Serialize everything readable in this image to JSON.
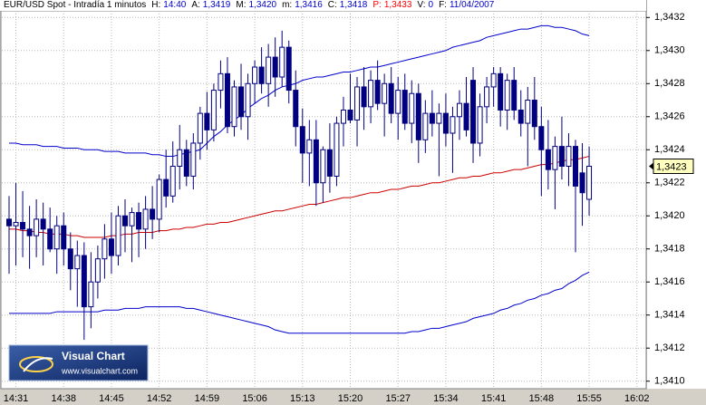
{
  "chart_data": {
    "type": "candlestick",
    "header": {
      "title": "EUR/USD Spot - Intradía 1 minutos",
      "items": [
        {
          "label": "H:",
          "value": "14:40",
          "color": "#0000cc"
        },
        {
          "label": "A:",
          "value": "1,3419",
          "color": "#0000cc"
        },
        {
          "label": "M:",
          "value": "1,3420",
          "color": "#0000cc"
        },
        {
          "label": "m:",
          "value": "1,3416",
          "color": "#0000cc"
        },
        {
          "label": "C:",
          "value": "1,3418",
          "color": "#0000cc"
        },
        {
          "label": "P:",
          "value": "1,3433",
          "color": "#ff0000",
          "label_color": "#ff0000"
        },
        {
          "label": "V:",
          "value": "0",
          "color": "#0000cc"
        },
        {
          "label": "F:",
          "value": "11/04/2007",
          "color": "#0000cc"
        }
      ]
    },
    "logo": {
      "title": "Visual Chart",
      "url": "www.visualchart.com"
    },
    "categories": [
      null,
      "14:31",
      null,
      null,
      null,
      null,
      null,
      null,
      "14:38",
      null,
      null,
      null,
      null,
      null,
      null,
      "14:45",
      null,
      null,
      null,
      null,
      null,
      null,
      "14:52",
      null,
      null,
      null,
      null,
      null,
      null,
      "14:59",
      null,
      null,
      null,
      null,
      null,
      null,
      "15:06",
      null,
      null,
      null,
      null,
      null,
      null,
      "15:13",
      null,
      null,
      null,
      null,
      null,
      null,
      "15:20",
      null,
      null,
      null,
      null,
      null,
      null,
      "15:27",
      null,
      null,
      null,
      null,
      null,
      null,
      "15:34",
      null,
      null,
      null,
      null,
      null,
      null,
      "15:41",
      null,
      null,
      null,
      null,
      null,
      null,
      "15:48",
      null,
      null,
      null,
      null,
      null,
      null,
      "15:55",
      null,
      null,
      null,
      null,
      null,
      null,
      "16:02"
    ],
    "candle_color": "#000080",
    "open": [
      1.34198,
      1.34194,
      1.34196,
      1.34192,
      1.34188,
      1.34198,
      1.34192,
      1.3418,
      1.34194,
      1.3418,
      1.34168,
      1.34176,
      1.34145,
      1.3416,
      1.34174,
      1.34186,
      1.34176,
      1.342,
      1.34194,
      1.34202,
      1.34192,
      1.34204,
      1.34198,
      1.34222,
      1.34212,
      1.3423,
      1.3424,
      1.34224,
      1.34244,
      1.34262,
      1.34252,
      1.34276,
      1.34286,
      1.34254,
      1.34278,
      1.3426,
      1.3428,
      1.3429,
      1.3428,
      1.34296,
      1.34284,
      1.34302,
      1.34276,
      1.34254,
      1.34238,
      1.34246,
      1.3422,
      1.3424,
      1.34224,
      1.34256,
      1.34264,
      1.34258,
      1.34278,
      1.34266,
      1.34282,
      1.34268,
      1.3428,
      1.34262,
      1.34276,
      1.34256,
      1.34274,
      1.34246,
      1.34262,
      1.34256,
      1.34262,
      1.3425,
      1.3426,
      1.34268,
      1.34282,
      1.34244,
      1.34266,
      1.34278,
      1.34286,
      1.34264,
      1.34282,
      1.34264,
      1.34256,
      1.3427,
      1.34254,
      1.3424,
      1.34228,
      1.34242,
      1.3423,
      1.34242,
      1.34226,
      1.3421,
      null,
      null,
      null,
      null,
      null,
      null,
      null
    ],
    "high": [
      1.34212,
      1.3422,
      1.34215,
      1.34206,
      1.3421,
      1.34208,
      1.34205,
      1.342,
      1.34202,
      1.3419,
      1.34185,
      1.34184,
      1.34178,
      1.34182,
      1.34195,
      1.34202,
      1.34206,
      1.3421,
      1.34205,
      1.34208,
      1.34212,
      1.34218,
      1.34225,
      1.3424,
      1.34245,
      1.34255,
      1.34246,
      1.3425,
      1.34266,
      1.34275,
      1.3428,
      1.34294,
      1.34296,
      1.34282,
      1.34292,
      1.34286,
      1.34294,
      1.34302,
      1.34304,
      1.34308,
      1.34312,
      1.34306,
      1.34288,
      1.34265,
      1.34258,
      1.34258,
      1.34242,
      1.34256,
      1.3426,
      1.34272,
      1.34286,
      1.34284,
      1.3429,
      1.34288,
      1.34294,
      1.34286,
      1.3429,
      1.34284,
      1.34286,
      1.34282,
      1.3428,
      1.3427,
      1.34276,
      1.34268,
      1.34274,
      1.34266,
      1.34276,
      1.34284,
      1.3429,
      1.34274,
      1.34284,
      1.3429,
      1.3429,
      1.34286,
      1.3429,
      1.34276,
      1.34278,
      1.34284,
      1.34266,
      1.34258,
      1.34248,
      1.3426,
      1.3425,
      1.34246,
      1.34244,
      1.34242,
      null,
      null,
      null,
      null,
      null,
      null,
      null
    ],
    "low": [
      1.34165,
      1.3417,
      1.34175,
      1.34168,
      1.34175,
      1.3417,
      1.34178,
      1.34165,
      1.3417,
      1.34155,
      1.34145,
      1.34125,
      1.34132,
      1.3415,
      1.34162,
      1.34165,
      1.3417,
      1.34178,
      1.34172,
      1.34175,
      1.3418,
      1.34186,
      1.3419,
      1.34205,
      1.34208,
      1.34216,
      1.34218,
      1.34216,
      1.34234,
      1.3424,
      1.34245,
      1.34265,
      1.3425,
      1.34248,
      1.34252,
      1.34246,
      1.34268,
      1.34274,
      1.34266,
      1.34272,
      1.34278,
      1.34268,
      1.34242,
      1.3422,
      1.34218,
      1.34206,
      1.34208,
      1.34214,
      1.34218,
      1.34242,
      1.34256,
      1.34242,
      1.34252,
      1.34256,
      1.34264,
      1.34248,
      1.34256,
      1.34246,
      1.34252,
      1.34244,
      1.34232,
      1.34238,
      1.34248,
      1.34224,
      1.34242,
      1.34226,
      1.34246,
      1.34248,
      1.34232,
      1.34236,
      1.34256,
      1.34266,
      1.34254,
      1.34252,
      1.34258,
      1.34248,
      1.3423,
      1.34246,
      1.34212,
      1.34216,
      1.34204,
      1.34222,
      1.34218,
      1.34178,
      1.34194,
      1.342,
      null,
      null,
      null,
      null,
      null,
      null,
      null
    ],
    "close": [
      1.34194,
      1.34196,
      1.34192,
      1.34188,
      1.34198,
      1.34192,
      1.3418,
      1.34194,
      1.3418,
      1.34168,
      1.34176,
      1.34145,
      1.3416,
      1.34174,
      1.34186,
      1.34176,
      1.342,
      1.34194,
      1.34202,
      1.34192,
      1.34204,
      1.34198,
      1.34222,
      1.34212,
      1.3423,
      1.3424,
      1.34224,
      1.34244,
      1.34262,
      1.34252,
      1.34276,
      1.34286,
      1.34254,
      1.34278,
      1.3426,
      1.3428,
      1.3429,
      1.3428,
      1.34296,
      1.34284,
      1.34302,
      1.34276,
      1.34254,
      1.34238,
      1.34246,
      1.3422,
      1.3424,
      1.34224,
      1.34256,
      1.34264,
      1.34258,
      1.34278,
      1.34266,
      1.34282,
      1.34268,
      1.3428,
      1.34262,
      1.34276,
      1.34256,
      1.34274,
      1.34246,
      1.34262,
      1.34256,
      1.34262,
      1.3425,
      1.3426,
      1.34268,
      1.34252,
      1.34244,
      1.34266,
      1.34278,
      1.34286,
      1.34264,
      1.34282,
      1.34264,
      1.34256,
      1.3427,
      1.34254,
      1.3424,
      1.34228,
      1.34242,
      1.3423,
      1.34242,
      1.34218,
      1.34214,
      1.3423,
      null,
      null,
      null,
      null,
      null,
      null,
      null
    ],
    "lines": [
      {
        "color": "#0000cc",
        "values": [
          1.34244,
          1.34244,
          1.34243,
          1.34243,
          1.34243,
          1.34242,
          1.34242,
          1.34242,
          1.34241,
          1.34241,
          1.34241,
          1.3424,
          1.3424,
          1.3424,
          1.34239,
          1.34239,
          1.34239,
          1.34238,
          1.34238,
          1.34238,
          1.34238,
          1.34237,
          1.34237,
          1.34236,
          1.34236,
          1.34237,
          1.34238,
          1.34239,
          1.3424,
          1.34244,
          1.34248,
          1.34251,
          1.34255,
          1.34258,
          1.34261,
          1.34265,
          1.34268,
          1.34271,
          1.34273,
          1.34276,
          1.34278,
          1.34279,
          1.3428,
          1.34282,
          1.34283,
          1.34284,
          1.34284,
          1.34285,
          1.34286,
          1.34287,
          1.34287,
          1.34288,
          1.34289,
          1.3429,
          1.3429,
          1.34291,
          1.34292,
          1.34293,
          1.34294,
          1.34295,
          1.34296,
          1.34297,
          1.34298,
          1.34299,
          1.343,
          1.34302,
          1.34303,
          1.34304,
          1.34305,
          1.34306,
          1.34308,
          1.34309,
          1.3431,
          1.34311,
          1.34312,
          1.34313,
          1.34313,
          1.34314,
          1.34315,
          1.34315,
          1.34314,
          1.34314,
          1.34313,
          1.34312,
          1.3431,
          1.34309,
          null,
          null,
          null,
          null,
          null,
          null,
          null
        ]
      },
      {
        "color": "#cc0000",
        "values": [
          1.34192,
          1.34192,
          1.34191,
          1.34191,
          1.3419,
          1.3419,
          1.34189,
          1.34189,
          1.34189,
          1.34188,
          1.34188,
          1.34187,
          1.34187,
          1.34187,
          1.34187,
          1.34188,
          1.34188,
          1.34189,
          1.34189,
          1.3419,
          1.3419,
          1.3419,
          1.34191,
          1.34191,
          1.34192,
          1.34192,
          1.34193,
          1.34193,
          1.34194,
          1.34195,
          1.34195,
          1.34196,
          1.34196,
          1.34197,
          1.34198,
          1.34199,
          1.342,
          1.34201,
          1.34202,
          1.34203,
          1.34203,
          1.34204,
          1.34205,
          1.34206,
          1.34207,
          1.34207,
          1.34208,
          1.34209,
          1.3421,
          1.34211,
          1.34211,
          1.34212,
          1.34213,
          1.34214,
          1.34214,
          1.34215,
          1.34216,
          1.34216,
          1.34217,
          1.34218,
          1.34218,
          1.34219,
          1.3422,
          1.3422,
          1.34221,
          1.34222,
          1.34223,
          1.34223,
          1.34224,
          1.34224,
          1.34225,
          1.34226,
          1.34226,
          1.34227,
          1.34228,
          1.34228,
          1.34229,
          1.3423,
          1.34231,
          1.34231,
          1.34232,
          1.34233,
          1.34234,
          1.34234,
          1.34235,
          1.34236,
          null,
          null,
          null,
          null,
          null,
          null,
          null
        ]
      },
      {
        "color": "#0000cc",
        "values": [
          1.34141,
          1.34141,
          1.34141,
          1.34141,
          1.34141,
          1.34141,
          1.34141,
          1.34142,
          1.34142,
          1.34142,
          1.34142,
          1.34142,
          1.34142,
          1.34142,
          1.34143,
          1.34143,
          1.34143,
          1.34144,
          1.34144,
          1.34144,
          1.34145,
          1.34145,
          1.34145,
          1.34145,
          1.34145,
          1.34145,
          1.34144,
          1.34144,
          1.34143,
          1.34142,
          1.34141,
          1.3414,
          1.34139,
          1.34138,
          1.34137,
          1.34136,
          1.34135,
          1.34134,
          1.34133,
          1.34131,
          1.3413,
          1.34129,
          1.34129,
          1.34129,
          1.34129,
          1.34129,
          1.34129,
          1.34129,
          1.34129,
          1.34129,
          1.34129,
          1.34129,
          1.34129,
          1.34129,
          1.34129,
          1.34129,
          1.34129,
          1.34129,
          1.34129,
          1.3413,
          1.3413,
          1.34131,
          1.34132,
          1.34132,
          1.34133,
          1.34134,
          1.34135,
          1.34136,
          1.34138,
          1.34139,
          1.3414,
          1.34141,
          1.34143,
          1.34144,
          1.34146,
          1.34147,
          1.34149,
          1.3415,
          1.34152,
          1.34153,
          1.34155,
          1.34156,
          1.34159,
          1.34161,
          1.34164,
          1.34166,
          null,
          null,
          null,
          null,
          null,
          null,
          null
        ]
      }
    ],
    "current_price": {
      "value": 1.3423,
      "label": "1,3423"
    },
    "ylim": [
      1.34096,
      1.34324
    ],
    "yticks": [
      {
        "value": 1.341,
        "label": "1,3410"
      },
      {
        "value": 1.3412,
        "label": "1,3412"
      },
      {
        "value": 1.3414,
        "label": "1,3414"
      },
      {
        "value": 1.3416,
        "label": "1,3416"
      },
      {
        "value": 1.3418,
        "label": "1,3418"
      },
      {
        "value": 1.342,
        "label": "1,3420"
      },
      {
        "value": 1.3422,
        "label": "1,3422"
      },
      {
        "value": 1.3424,
        "label": "1,3424"
      },
      {
        "value": 1.3426,
        "label": "1,3426"
      },
      {
        "value": 1.3428,
        "label": "1,3428"
      },
      {
        "value": 1.343,
        "label": "1,3430"
      },
      {
        "value": 1.3432,
        "label": "1,3432"
      }
    ],
    "grid": true
  }
}
